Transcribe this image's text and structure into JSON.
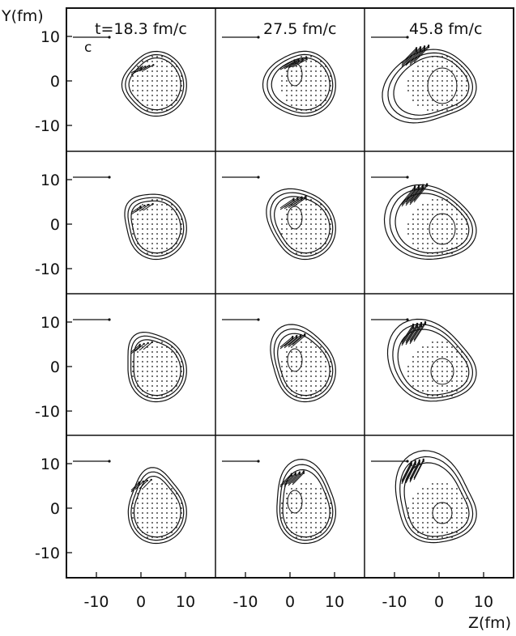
{
  "figure": {
    "y_axis_label": "Y(fm)",
    "x_axis_label": "Z(fm)",
    "velocity_scale_label": "c",
    "time_labels": [
      "t=18.3 fm/c",
      "27.5 fm/c",
      "45.8 fm/c"
    ],
    "y_tick_labels": [
      "10",
      "0",
      "-10"
    ],
    "x_tick_labels": [
      "-10",
      "0",
      "10"
    ],
    "rows": 4,
    "columns": 3,
    "colors": {
      "ink": "#111111",
      "background": "#ffffff"
    }
  }
}
